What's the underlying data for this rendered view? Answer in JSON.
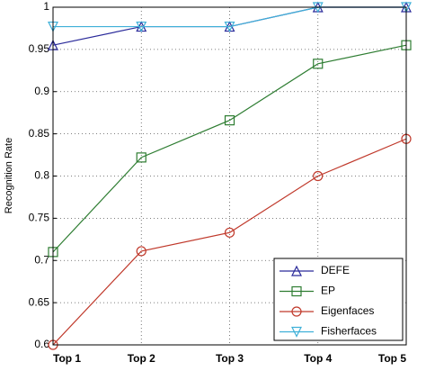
{
  "chart_data": {
    "type": "line",
    "y_label": "Recognition Rate",
    "categories": [
      "Top 1",
      "Top 2",
      "Top 3",
      "Top 4",
      "Top 5"
    ],
    "series": [
      {
        "name": "DEFE",
        "color": "#2a2a9a",
        "marker": "triangle-up",
        "values": [
          0.955,
          0.977,
          0.977,
          1,
          1
        ]
      },
      {
        "name": "EP",
        "color": "#2e7d32",
        "marker": "square",
        "values": [
          0.71,
          0.822,
          0.866,
          0.933,
          0.955
        ]
      },
      {
        "name": "Eigenfaces",
        "color": "#c0392b",
        "marker": "circle",
        "values": [
          0.6,
          0.711,
          0.733,
          0.8,
          0.844
        ]
      },
      {
        "name": "Fisherfaces",
        "color": "#3fb0d8",
        "marker": "triangle-down",
        "values": [
          0.977,
          0.977,
          0.977,
          1,
          1
        ]
      }
    ],
    "ylim": [
      0.6,
      1
    ],
    "yticks": [
      0.6,
      0.65,
      0.7,
      0.75,
      0.8,
      0.85,
      0.9,
      0.95,
      1
    ],
    "grid": true,
    "legend": "lower right"
  }
}
